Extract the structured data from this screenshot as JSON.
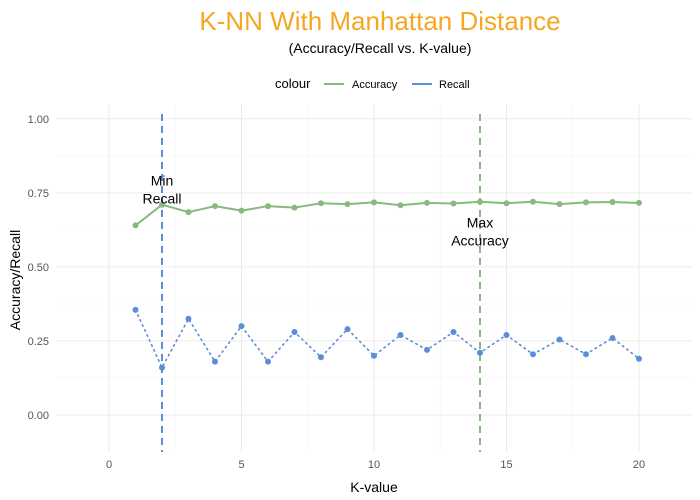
{
  "colors": {
    "title": "#F5A623",
    "accuracy": "#88B97E",
    "recall": "#5B8DD9",
    "grid_major": "#EBEBEB",
    "grid_minor": "#F5F5F5"
  },
  "chart_data": {
    "type": "line",
    "title": "K-NN With Manhattan Distance",
    "subtitle": "(Accuracy/Recall vs. K-value)",
    "xlabel": "K-value",
    "ylabel": "Accuracy/Recall",
    "xlim": [
      -2,
      22
    ],
    "ylim": [
      -0.125,
      1.05
    ],
    "x_ticks": [
      0,
      5,
      10,
      15,
      20
    ],
    "y_ticks": [
      0.0,
      0.25,
      0.5,
      0.75,
      1.0
    ],
    "x_tick_labels": [
      "0",
      "5",
      "10",
      "15",
      "20"
    ],
    "y_tick_labels": [
      "0.00",
      "0.25",
      "0.50",
      "0.75",
      "1.00"
    ],
    "grid": true,
    "legend": {
      "title": "colour",
      "position": "top",
      "entries": [
        "Accuracy",
        "Recall"
      ]
    },
    "x": [
      1,
      2,
      3,
      4,
      5,
      6,
      7,
      8,
      9,
      10,
      11,
      12,
      13,
      14,
      15,
      16,
      17,
      18,
      19,
      20
    ],
    "series": [
      {
        "name": "Accuracy",
        "line_style": "solid",
        "values": [
          0.64,
          0.71,
          0.685,
          0.705,
          0.69,
          0.705,
          0.7,
          0.715,
          0.712,
          0.718,
          0.708,
          0.716,
          0.714,
          0.72,
          0.715,
          0.72,
          0.712,
          0.718,
          0.719,
          0.716
        ]
      },
      {
        "name": "Recall",
        "line_style": "dotted",
        "values": [
          0.355,
          0.16,
          0.325,
          0.18,
          0.3,
          0.18,
          0.28,
          0.195,
          0.29,
          0.2,
          0.27,
          0.22,
          0.28,
          0.21,
          0.27,
          0.205,
          0.255,
          0.205,
          0.26,
          0.19
        ]
      }
    ],
    "vlines": [
      {
        "x": 2,
        "series": "Recall",
        "style": "dashed"
      },
      {
        "x": 14,
        "series": "Accuracy",
        "style": "dashed"
      }
    ],
    "annotations": [
      {
        "lines": [
          "Min",
          "Recall"
        ],
        "x": 2,
        "y": 0.775
      },
      {
        "lines": [
          "Max",
          "Accuracy"
        ],
        "x": 14,
        "y": 0.633
      }
    ]
  }
}
